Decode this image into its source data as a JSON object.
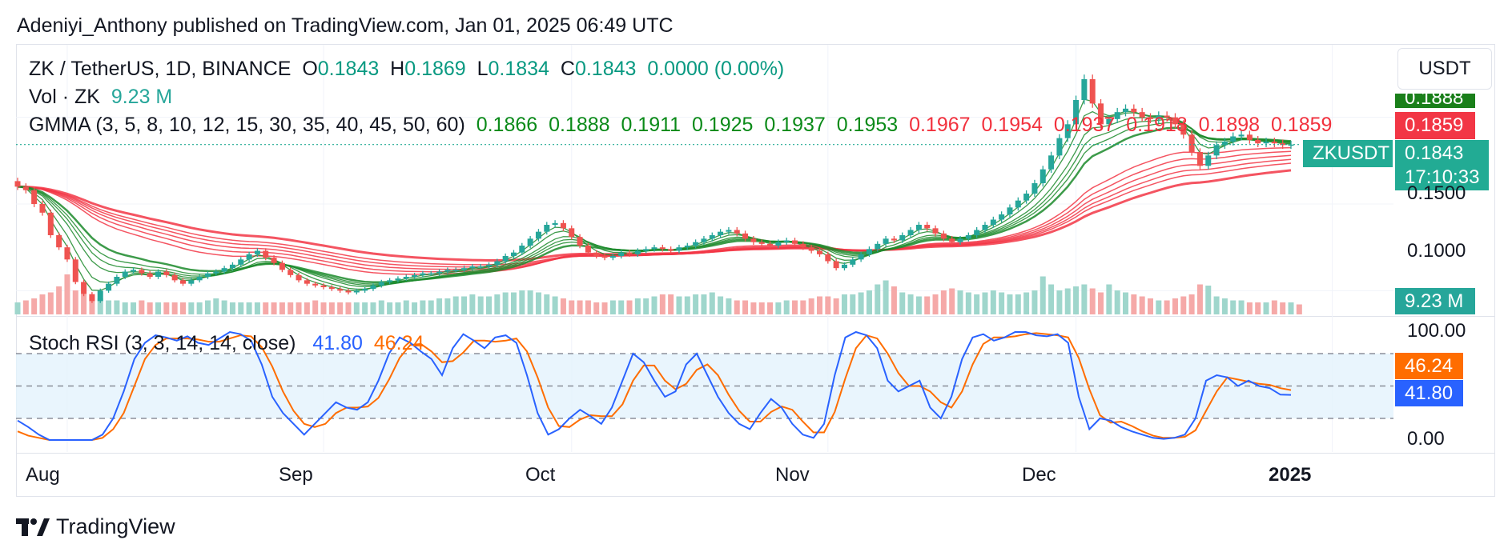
{
  "publisher_text": "Adeniyi_Anthony published on TradingView.com, Jan 01, 2025 06:49 UTC",
  "header": {
    "symbol": "ZK / TetherUS, 1D, BINANCE",
    "o_label": "O",
    "o_value": "0.1843",
    "h_label": "H",
    "h_value": "0.1869",
    "l_label": "L",
    "l_value": "0.1834",
    "c_label": "C",
    "c_value": "0.1843",
    "change": "0.0000 (0.00%)"
  },
  "volume_legend": {
    "label": "Vol · ZK",
    "value": "9.23 M"
  },
  "gmma_legend": {
    "label": "GMMA (3, 5, 8, 10, 12, 15, 30, 35, 40, 45, 50, 60)",
    "fast_values": [
      "0.1866",
      "0.1888",
      "0.1911",
      "0.1925",
      "0.1937",
      "0.1953"
    ],
    "slow_values": [
      "0.1967",
      "0.1954",
      "0.1937",
      "0.1918",
      "0.1898",
      "0.1859"
    ]
  },
  "stoch_legend": {
    "label": "Stoch RSI (3, 3, 14, 14, close)",
    "k_value": "41.80",
    "d_value": "46.24"
  },
  "currency_button": "USDT",
  "price_tags": {
    "gmma_green": "0.1888",
    "gmma_red": "0.1859",
    "symbol_tag": "ZKUSDT",
    "last_price": "0.1843",
    "countdown": "17:10:33",
    "volume_tag": "9.23 M",
    "stoch_d_tag": "46.24",
    "stoch_k_tag": "41.80"
  },
  "price_axis": [
    "0.1500",
    "0.1000"
  ],
  "stoch_axis": [
    "100.00",
    "0.00"
  ],
  "time_axis": [
    "Aug",
    "Sep",
    "Oct",
    "Nov",
    "Dec",
    "2025"
  ],
  "footer_brand": "TradingView",
  "colors": {
    "up": "#26a69a",
    "down": "#ef5350",
    "gmma_fast": "#1b8a2a",
    "gmma_slow": "#f23645",
    "stoch_k": "#2962ff",
    "stoch_d": "#ff6d00",
    "band_fill": "#e3f2fd"
  },
  "chart_data": {
    "type": "candlestick",
    "x_range": [
      "2024-07-26",
      "2024-12-31"
    ],
    "price_ylim": [
      0.09,
      0.24
    ],
    "close": [
      0.16,
      0.158,
      0.15,
      0.145,
      0.132,
      0.125,
      0.118,
      0.105,
      0.098,
      0.094,
      0.1,
      0.104,
      0.108,
      0.111,
      0.112,
      0.11,
      0.108,
      0.111,
      0.109,
      0.106,
      0.104,
      0.106,
      0.108,
      0.11,
      0.111,
      0.113,
      0.115,
      0.118,
      0.121,
      0.123,
      0.119,
      0.116,
      0.112,
      0.109,
      0.106,
      0.104,
      0.103,
      0.102,
      0.101,
      0.1,
      0.099,
      0.1,
      0.101,
      0.103,
      0.105,
      0.106,
      0.107,
      0.108,
      0.109,
      0.11,
      0.11,
      0.111,
      0.112,
      0.112,
      0.113,
      0.114,
      0.114,
      0.115,
      0.117,
      0.12,
      0.122,
      0.126,
      0.13,
      0.134,
      0.138,
      0.139,
      0.136,
      0.131,
      0.126,
      0.122,
      0.12,
      0.119,
      0.12,
      0.122,
      0.121,
      0.123,
      0.124,
      0.125,
      0.124,
      0.123,
      0.125,
      0.126,
      0.128,
      0.13,
      0.132,
      0.134,
      0.135,
      0.133,
      0.13,
      0.128,
      0.127,
      0.126,
      0.128,
      0.129,
      0.127,
      0.125,
      0.123,
      0.121,
      0.117,
      0.113,
      0.115,
      0.118,
      0.121,
      0.124,
      0.127,
      0.13,
      0.129,
      0.132,
      0.135,
      0.138,
      0.136,
      0.133,
      0.13,
      0.128,
      0.13,
      0.132,
      0.135,
      0.138,
      0.141,
      0.144,
      0.148,
      0.152,
      0.156,
      0.162,
      0.17,
      0.178,
      0.188,
      0.196,
      0.21,
      0.222,
      0.208,
      0.196,
      0.199,
      0.203,
      0.205,
      0.203,
      0.2,
      0.199,
      0.201,
      0.2,
      0.196,
      0.19,
      0.18,
      0.172,
      0.178,
      0.184,
      0.186,
      0.189,
      0.19,
      0.187,
      0.185,
      0.186,
      0.185,
      0.184,
      0.1843
    ],
    "volume_relative": [
      0.3,
      0.35,
      0.4,
      0.5,
      0.55,
      0.7,
      1.0,
      0.6,
      0.5,
      0.45,
      0.4,
      0.35,
      0.35,
      0.3,
      0.3,
      0.35,
      0.3,
      0.3,
      0.3,
      0.3,
      0.3,
      0.3,
      0.3,
      0.35,
      0.4,
      0.35,
      0.3,
      0.3,
      0.3,
      0.3,
      0.3,
      0.3,
      0.3,
      0.3,
      0.3,
      0.3,
      0.35,
      0.3,
      0.3,
      0.3,
      0.3,
      0.3,
      0.3,
      0.3,
      0.35,
      0.3,
      0.3,
      0.35,
      0.3,
      0.35,
      0.35,
      0.4,
      0.4,
      0.45,
      0.45,
      0.5,
      0.45,
      0.45,
      0.5,
      0.55,
      0.55,
      0.6,
      0.6,
      0.55,
      0.5,
      0.45,
      0.4,
      0.35,
      0.35,
      0.35,
      0.3,
      0.3,
      0.35,
      0.35,
      0.35,
      0.4,
      0.4,
      0.45,
      0.5,
      0.5,
      0.45,
      0.45,
      0.5,
      0.5,
      0.55,
      0.45,
      0.4,
      0.35,
      0.35,
      0.3,
      0.3,
      0.3,
      0.3,
      0.35,
      0.35,
      0.35,
      0.4,
      0.45,
      0.45,
      0.4,
      0.5,
      0.5,
      0.55,
      0.6,
      0.75,
      0.85,
      0.7,
      0.55,
      0.5,
      0.45,
      0.45,
      0.5,
      0.6,
      0.65,
      0.6,
      0.55,
      0.5,
      0.55,
      0.6,
      0.55,
      0.5,
      0.5,
      0.55,
      0.6,
      0.95,
      0.75,
      0.6,
      0.65,
      0.7,
      0.75,
      0.65,
      0.55,
      0.75,
      0.6,
      0.55,
      0.5,
      0.45,
      0.4,
      0.35,
      0.35,
      0.4,
      0.45,
      0.5,
      0.75,
      0.72,
      0.45,
      0.4,
      0.35,
      0.35,
      0.3,
      0.3,
      0.3,
      0.35,
      0.3,
      0.3,
      0.25
    ],
    "stoch_rsi_k": [
      18,
      12,
      5,
      0,
      0,
      0,
      0,
      0,
      5,
      20,
      45,
      75,
      90,
      97,
      95,
      92,
      96,
      90,
      88,
      94,
      100,
      98,
      92,
      70,
      40,
      25,
      15,
      5,
      15,
      25,
      35,
      30,
      28,
      35,
      55,
      80,
      95,
      90,
      82,
      75,
      60,
      85,
      98,
      92,
      85,
      95,
      97,
      90,
      60,
      25,
      5,
      10,
      20,
      28,
      22,
      15,
      30,
      55,
      80,
      72,
      55,
      40,
      45,
      70,
      80,
      60,
      40,
      25,
      15,
      10,
      25,
      38,
      30,
      15,
      5,
      2,
      15,
      60,
      95,
      100,
      97,
      85,
      55,
      45,
      50,
      55,
      30,
      20,
      40,
      75,
      95,
      98,
      92,
      95,
      100,
      100,
      97,
      96,
      98,
      90,
      40,
      10,
      20,
      18,
      12,
      8,
      5,
      2,
      1,
      2,
      5,
      20,
      55,
      60,
      58,
      50,
      55,
      50,
      48,
      42,
      41.8
    ],
    "stoch_rsi_d": [
      8,
      4,
      2,
      0,
      0,
      0,
      0,
      0,
      2,
      10,
      25,
      50,
      75,
      88,
      94,
      94,
      94,
      93,
      91,
      91,
      94,
      97,
      96,
      86,
      68,
      45,
      27,
      15,
      12,
      15,
      25,
      30,
      30,
      31,
      39,
      56,
      76,
      88,
      89,
      82,
      72,
      73,
      81,
      92,
      92,
      91,
      92,
      94,
      82,
      58,
      30,
      13,
      12,
      19,
      23,
      22,
      22,
      33,
      55,
      69,
      69,
      55,
      47,
      52,
      65,
      70,
      60,
      42,
      27,
      17,
      17,
      26,
      31,
      28,
      17,
      7,
      7,
      26,
      57,
      85,
      97,
      94,
      80,
      62,
      50,
      50,
      45,
      35,
      30,
      45,
      70,
      89,
      95,
      95,
      96,
      98,
      99,
      98,
      97,
      95,
      76,
      47,
      23,
      16,
      17,
      13,
      8,
      4,
      2,
      2,
      3,
      9,
      27,
      45,
      58,
      56,
      54,
      52,
      51,
      48,
      46.24
    ],
    "stoch_levels": {
      "upper": 80,
      "middle": 50,
      "lower": 20
    }
  }
}
